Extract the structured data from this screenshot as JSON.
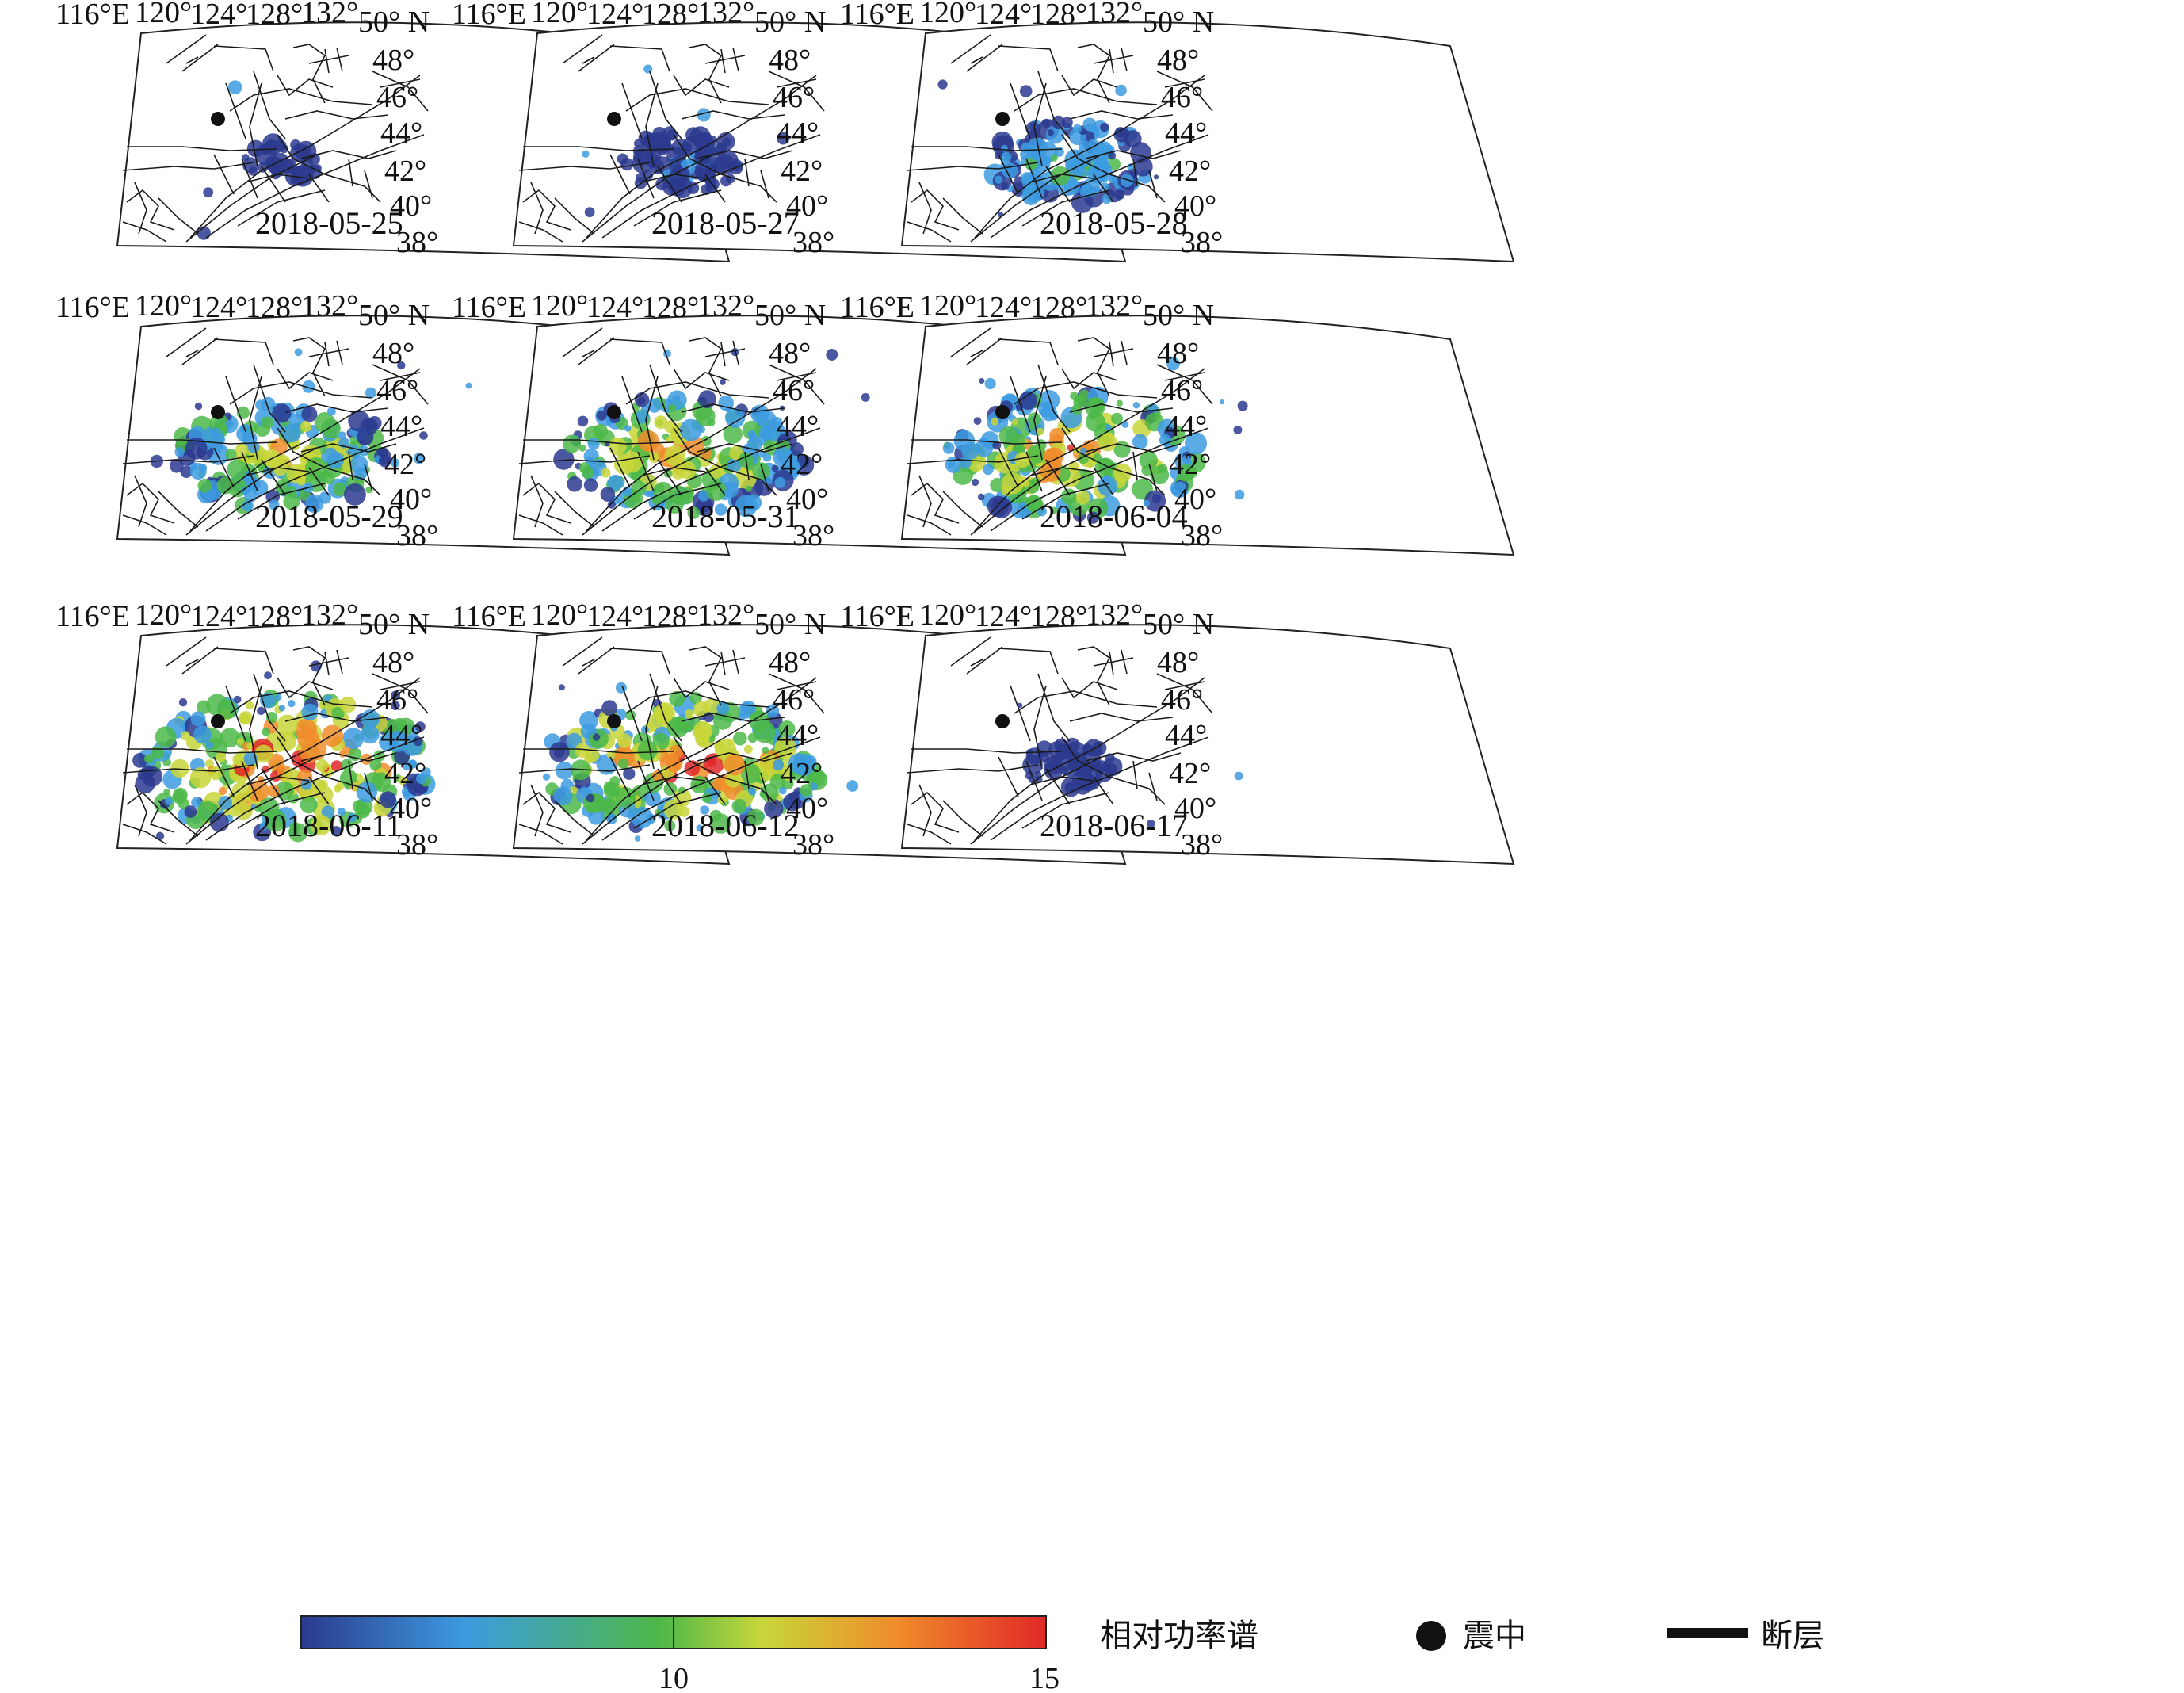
{
  "map": {
    "lon_labels": [
      "116°E",
      "120°",
      "124°",
      "128°",
      "132°"
    ],
    "lat_labels": [
      "50° N",
      "48°",
      "46°",
      "44°",
      "42°",
      "40°",
      "38°"
    ]
  },
  "panels": [
    {
      "date": "2018-05-25",
      "intensity": 0.05
    },
    {
      "date": "2018-05-27",
      "intensity": 0.25
    },
    {
      "date": "2018-05-28",
      "intensity": 0.45
    },
    {
      "date": "2018-05-29",
      "intensity": 0.7
    },
    {
      "date": "2018-05-31",
      "intensity": 0.8
    },
    {
      "date": "2018-06-04",
      "intensity": 0.85
    },
    {
      "date": "2018-06-11",
      "intensity": 1.0
    },
    {
      "date": "2018-06-12",
      "intensity": 0.95
    },
    {
      "date": "2018-06-17",
      "intensity": 0.12
    }
  ],
  "legend": {
    "colorbar_label": "相对功率谱",
    "tick_min": "10",
    "tick_max": "15",
    "epicenter_label": "震中",
    "fault_label": "断层",
    "colors": [
      "#2b3a8f",
      "#3d9be0",
      "#4cb848",
      "#c8d63a",
      "#f08c2a",
      "#e02828"
    ]
  }
}
